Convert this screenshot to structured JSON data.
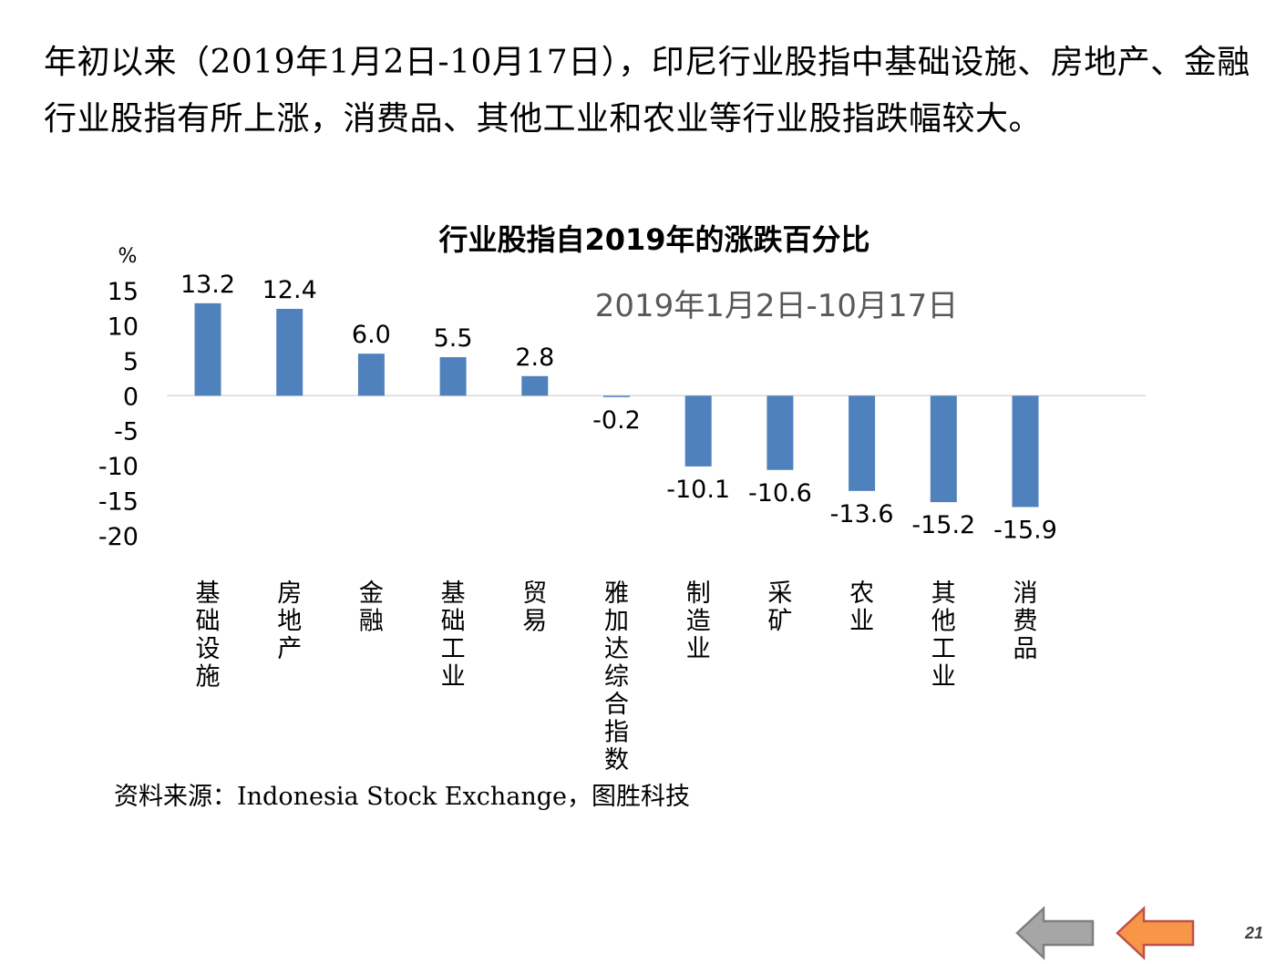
{
  "intro_text": "年初以来（2019年1月2日-10月17日），印尼行业股指中基础设施、房地产、金融行业股指有所上涨，消费品、其他工业和农业等行业股指跌幅较大。",
  "chart_data": {
    "type": "bar",
    "title": "行业股指自2019年的涨跌百分比",
    "subtitle": "2019年1月2日-10月17日",
    "ylabel": "%",
    "xlabel": "",
    "ylim": [
      -20,
      15
    ],
    "yticks": [
      15,
      10,
      5,
      0,
      -5,
      -10,
      -15,
      -20
    ],
    "categories": [
      "基础设施",
      "房地产",
      "金融",
      "基础工业",
      "贸易",
      "雅加达综合指数",
      "制造业",
      "采矿",
      "农业",
      "其他工业",
      "消费品"
    ],
    "values": [
      13.2,
      12.4,
      6.0,
      5.5,
      2.8,
      -0.2,
      -10.1,
      -10.6,
      -13.6,
      -15.2,
      -15.9
    ],
    "value_labels": [
      "13.2",
      "12.4",
      "6.0",
      "5.5",
      "2.8",
      "-0.2",
      "-10.1",
      "-10.6",
      "-13.6",
      "-15.2",
      "-15.9"
    ],
    "bar_color": "#4f81bd",
    "axis_color": "#d9d9d9",
    "grid": false,
    "legend": "none"
  },
  "source_note": "资料来源：Indonesia Stock Exchange，图胜科技",
  "navigation": {
    "back_icon": "grey-left-arrow-icon",
    "forward_icon": "orange-left-arrow-icon",
    "back_color": "#a6a6a6",
    "forward_color": "#f79646"
  },
  "page_number": "21"
}
